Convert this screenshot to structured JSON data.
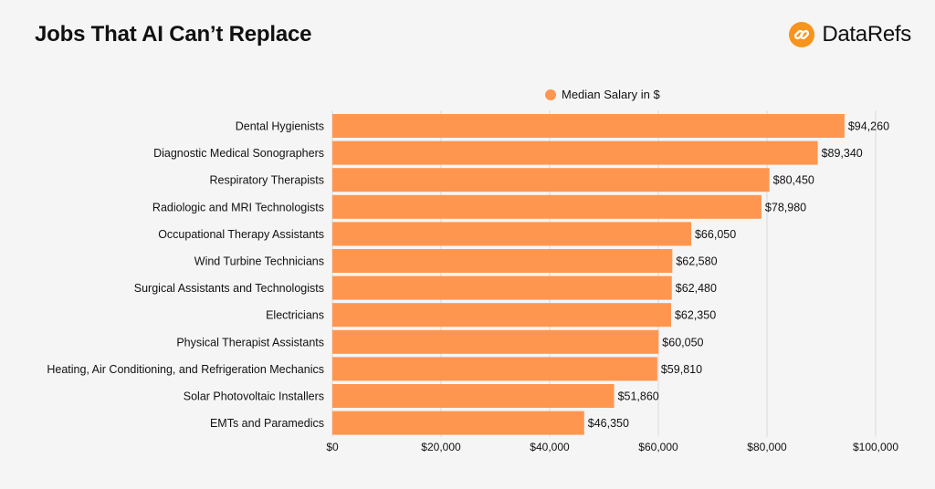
{
  "header": {
    "title": "Jobs That AI Can’t Replace",
    "brand_name": "DataRefs",
    "brand_icon": "link-icon"
  },
  "colors": {
    "bar": "#ff9650",
    "brand": "#f7941d",
    "grid": "#d9d9d9",
    "background": "#f5f5f5"
  },
  "chart_data": {
    "type": "bar",
    "orientation": "horizontal",
    "title": "Jobs That AI Can’t Replace",
    "categories": [
      "Dental Hygienists",
      "Diagnostic Medical Sonographers",
      "Respiratory Therapists",
      "Radiologic and MRI Technologists",
      "Occupational Therapy Assistants",
      "Wind Turbine Technicians",
      "Surgical Assistants and Technologists",
      "Electricians",
      "Physical Therapist Assistants",
      "Heating, Air Conditioning, and Refrigeration Mechanics",
      "Solar Photovoltaic Installers",
      "EMTs and Paramedics"
    ],
    "series": [
      {
        "name": "Median Salary in $",
        "values": [
          94260,
          89340,
          80450,
          78980,
          66050,
          62580,
          62480,
          62350,
          60050,
          59810,
          51860,
          46350
        ]
      }
    ],
    "data_labels": [
      "$94,260",
      "$89,340",
      "$80,450",
      "$78,980",
      "$66,050",
      "$62,580",
      "$62,480",
      "$62,350",
      "$60,050",
      "$59,810",
      "$51,860",
      "$46,350"
    ],
    "xlim": [
      0,
      100000
    ],
    "xticks": [
      0,
      20000,
      40000,
      60000,
      80000,
      100000
    ],
    "xtick_labels": [
      "$0",
      "$20,000",
      "$40,000",
      "$60,000",
      "$80,000",
      "$100,000"
    ],
    "xlabel": "",
    "ylabel": "",
    "grid": "vertical",
    "legend_position": "top"
  }
}
